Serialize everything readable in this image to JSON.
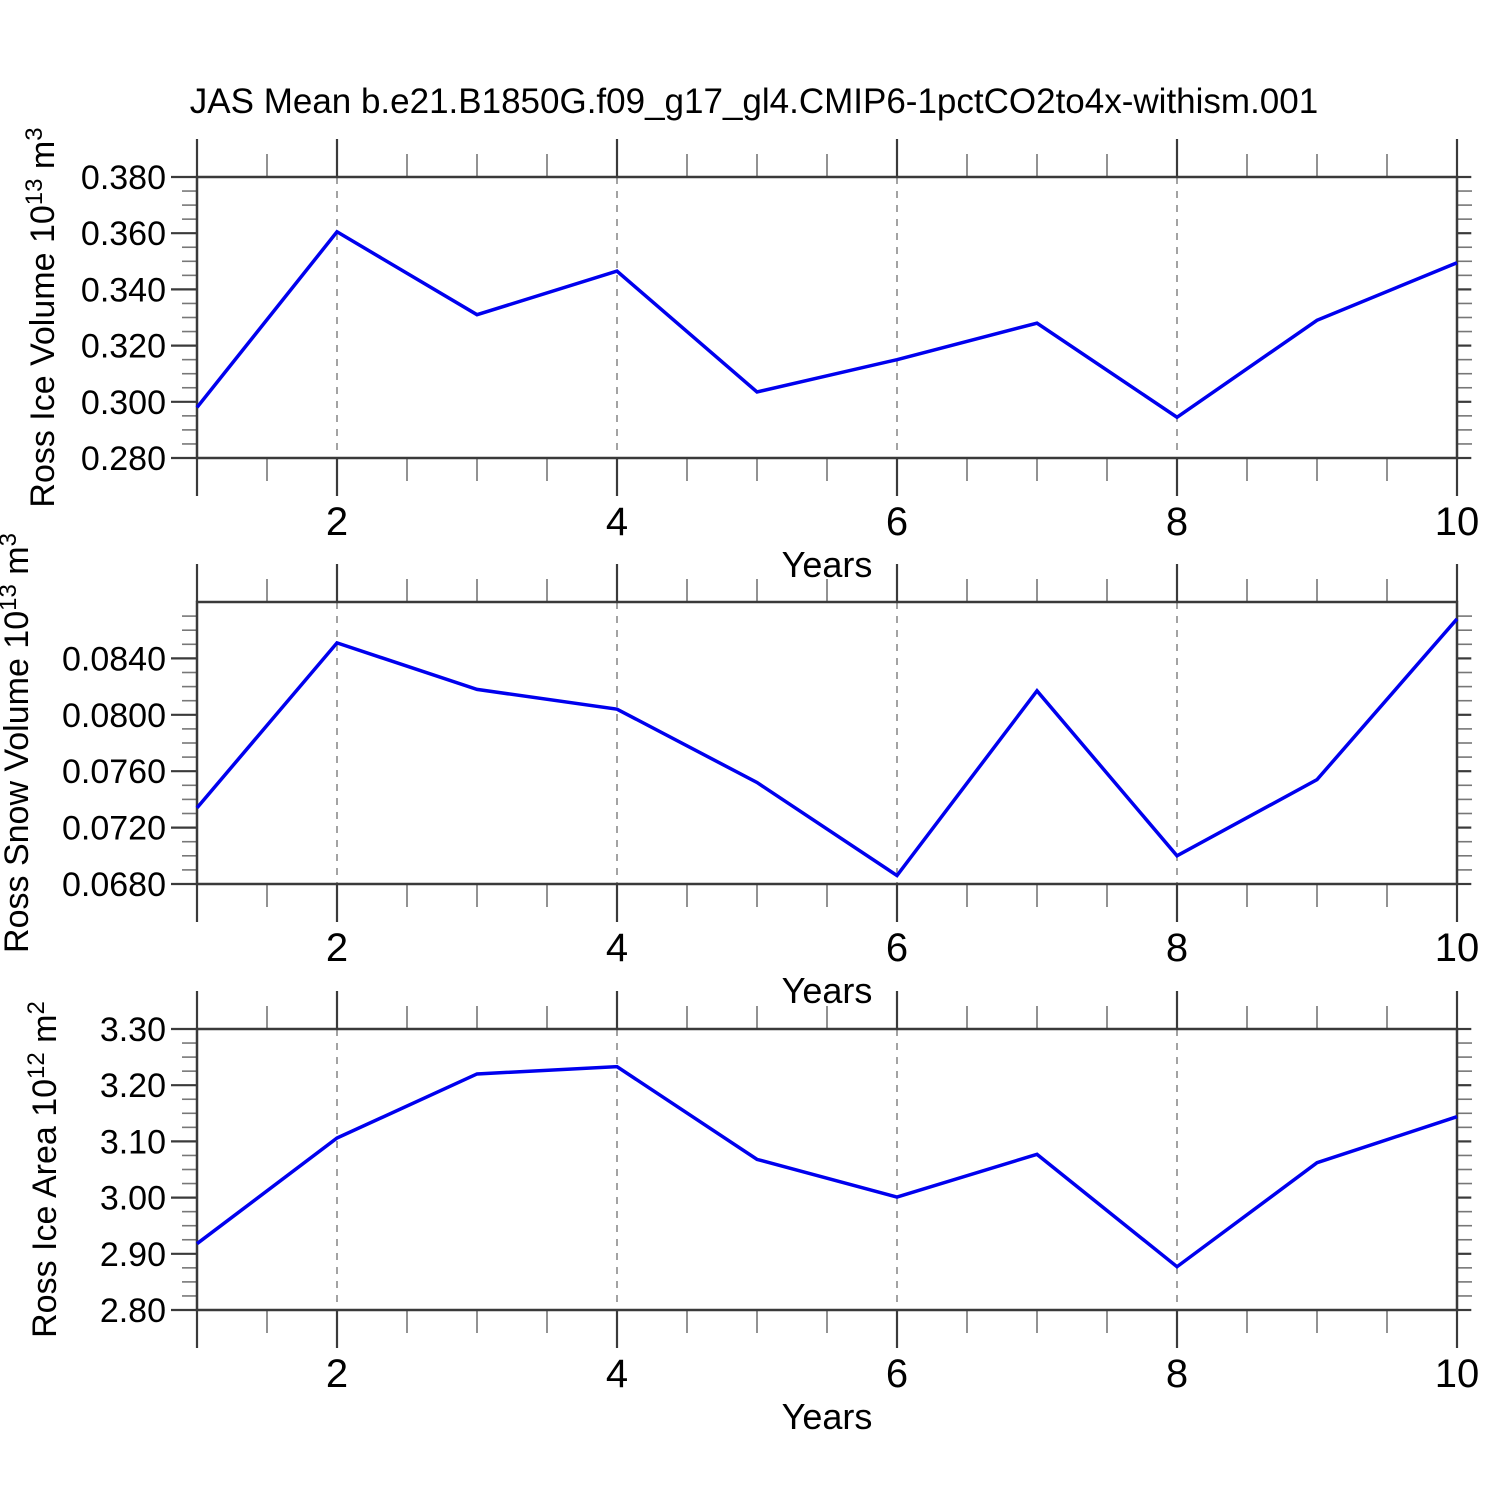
{
  "title": "JAS Mean b.e21.B1850G.f09_g17_gl4.CMIP6-1pctCO2to4x-withism.001",
  "colors": {
    "line": "#0000EE",
    "frame": "#3a3a3a",
    "major_tick": "#3a3a3a",
    "minor_tick": "#777777",
    "gridline": "#999999",
    "text": "#000000",
    "background": "#ffffff"
  },
  "x_axis": {
    "label": "Years",
    "xlim": [
      1,
      10
    ],
    "major_ticks": [
      2,
      4,
      6,
      8,
      10
    ],
    "major_labels": [
      "2",
      "4",
      "6",
      "8",
      "10"
    ],
    "edge_tick": 1,
    "minor_step": 0.5,
    "gridlines": [
      2,
      4,
      6,
      8
    ]
  },
  "chart_data": [
    {
      "type": "line",
      "name": "ross-ice-volume",
      "ylabel_parts": [
        [
          "Ross Ice Volume 10",
          false
        ],
        [
          "13",
          true
        ],
        [
          " m",
          false
        ],
        [
          "3",
          true
        ]
      ],
      "xlabel": "Years",
      "x": [
        1,
        2,
        3,
        4,
        5,
        6,
        7,
        8,
        9,
        10
      ],
      "values": [
        0.298,
        0.3605,
        0.331,
        0.3465,
        0.3035,
        0.315,
        0.328,
        0.2945,
        0.329,
        0.3495
      ],
      "ylim": [
        0.28,
        0.38
      ],
      "ytick_values": [
        0.28,
        0.3,
        0.32,
        0.34,
        0.36,
        0.38
      ],
      "ytick_labels": [
        "0.280",
        "0.300",
        "0.320",
        "0.340",
        "0.360",
        "0.380"
      ],
      "yminor_step": 0.005,
      "grid": "vertical-dashed",
      "legend": "none"
    },
    {
      "type": "line",
      "name": "ross-snow-volume",
      "ylabel_parts": [
        [
          "Ross Snow Volume 10",
          false
        ],
        [
          "13",
          true
        ],
        [
          " m",
          false
        ],
        [
          "3",
          true
        ]
      ],
      "xlabel": "Years",
      "x": [
        1,
        2,
        3,
        4,
        5,
        6,
        7,
        8,
        9,
        10
      ],
      "values": [
        0.0734,
        0.0851,
        0.0818,
        0.0804,
        0.0752,
        0.0686,
        0.0817,
        0.07,
        0.0754,
        0.0868
      ],
      "ylim": [
        0.068,
        0.088
      ],
      "ytick_values": [
        0.068,
        0.072,
        0.076,
        0.08,
        0.084
      ],
      "ytick_labels": [
        "0.0680",
        "0.0720",
        "0.0760",
        "0.0800",
        "0.0840"
      ],
      "yminor_step": 0.001,
      "grid": "vertical-dashed",
      "legend": "none"
    },
    {
      "type": "line",
      "name": "ross-ice-area",
      "ylabel_parts": [
        [
          "Ross Ice Area 10",
          false
        ],
        [
          "12",
          true
        ],
        [
          " m",
          false
        ],
        [
          "2",
          true
        ]
      ],
      "xlabel": "Years",
      "x": [
        1,
        2,
        3,
        4,
        5,
        6,
        7,
        8,
        9,
        10
      ],
      "values": [
        2.918,
        3.106,
        3.22,
        3.233,
        3.068,
        3.001,
        3.077,
        2.877,
        3.062,
        3.144
      ],
      "ylim": [
        2.8,
        3.3
      ],
      "ytick_values": [
        2.8,
        2.9,
        3.0,
        3.1,
        3.2,
        3.3
      ],
      "ytick_labels": [
        "2.80",
        "2.90",
        "3.00",
        "3.10",
        "3.20",
        "3.30"
      ],
      "yminor_step": 0.025,
      "grid": "vertical-dashed",
      "legend": "none"
    }
  ]
}
